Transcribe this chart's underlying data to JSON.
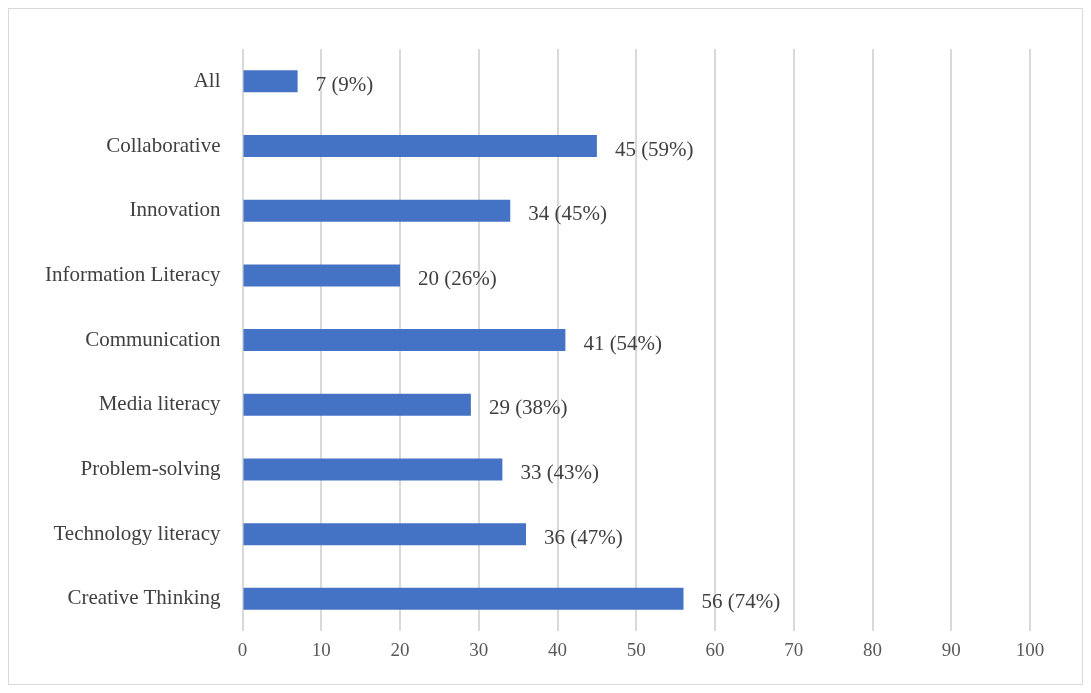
{
  "chart_data": {
    "type": "bar",
    "orientation": "horizontal",
    "categories": [
      "All",
      "Collaborative",
      "Innovation",
      "Information Literacy",
      "Communication",
      "Media literacy",
      "Problem-solving",
      "Technology literacy",
      "Creative Thinking"
    ],
    "values": [
      7,
      45,
      34,
      20,
      41,
      29,
      33,
      36,
      56
    ],
    "value_labels": [
      "7 (9%)",
      "45 (59%)",
      "34 (45%)",
      "20 (26%)",
      "41 (54%)",
      "29 (38%)",
      "33 (43%)",
      "36 (47%)",
      "56 (74%)"
    ],
    "color": "#4472c4",
    "xlim": [
      0,
      100
    ],
    "xticks": [
      0,
      10,
      20,
      30,
      40,
      50,
      60,
      70,
      80,
      90,
      100
    ],
    "grid": "x"
  }
}
